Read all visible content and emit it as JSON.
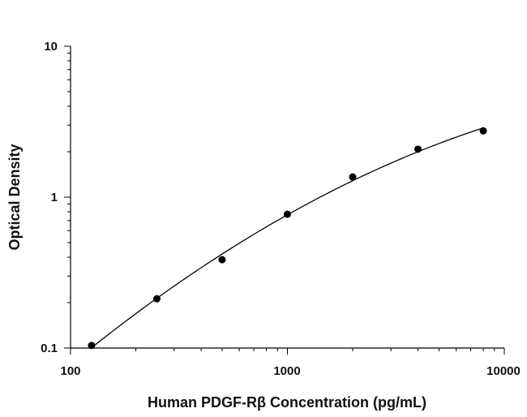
{
  "chart_data": {
    "type": "scatter",
    "title": "",
    "xlabel": "Human PDGF-Rβ Concentration (pg/mL)",
    "ylabel": "Optical Density",
    "x_scale": "log",
    "y_scale": "log",
    "xlim": [
      100,
      10000
    ],
    "ylim": [
      0.1,
      10
    ],
    "x_tick_labels": [
      "100",
      "1000",
      "10000"
    ],
    "y_tick_labels": [
      "0.1",
      "1",
      "10"
    ],
    "grid": false,
    "legend": "none",
    "point_color": "#000000",
    "line_color": "#000000",
    "series": [
      {
        "x": [
          125,
          250,
          500,
          1000,
          2000,
          4000,
          8000
        ],
        "y": [
          0.104,
          0.212,
          0.385,
          0.77,
          1.36,
          2.08,
          2.75
        ],
        "fit_line": "smooth curve"
      }
    ]
  }
}
